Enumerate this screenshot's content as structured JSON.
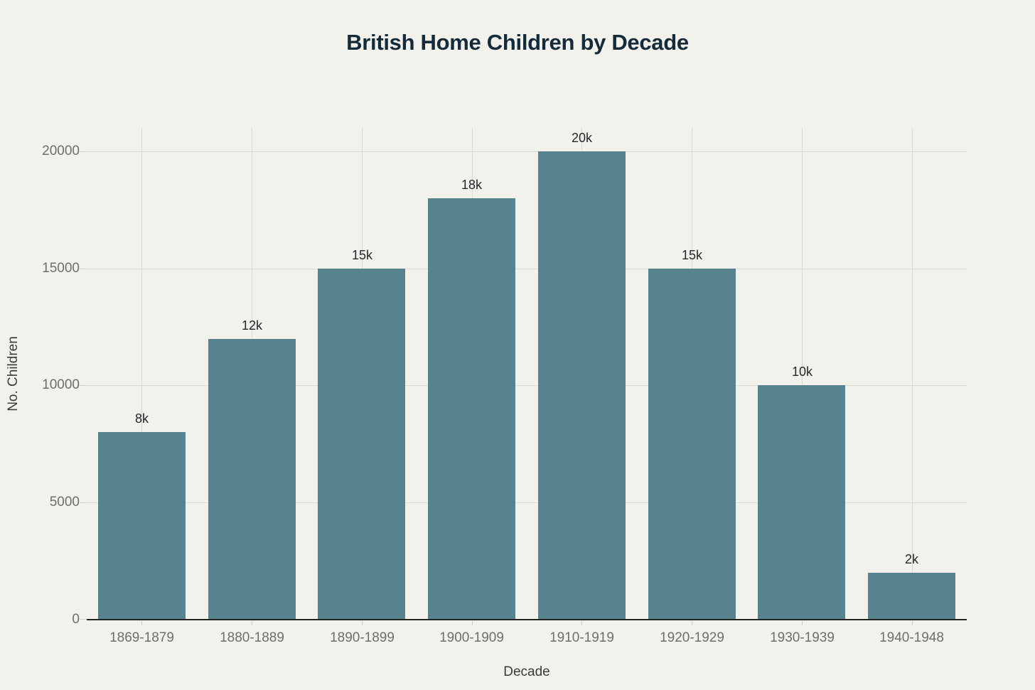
{
  "chart_data": {
    "type": "bar",
    "title": "British Home Children by Decade",
    "xlabel": "Decade",
    "ylabel": "No. Children",
    "categories": [
      "1869-1879",
      "1880-1889",
      "1890-1899",
      "1900-1909",
      "1910-1919",
      "1920-1929",
      "1930-1939",
      "1940-1948"
    ],
    "values": [
      8000,
      12000,
      15000,
      18000,
      20000,
      15000,
      10000,
      2000
    ],
    "bar_labels": [
      "8k",
      "12k",
      "15k",
      "18k",
      "20k",
      "15k",
      "10k",
      "2k"
    ],
    "yticks": [
      0,
      5000,
      10000,
      15000,
      20000
    ],
    "ytick_labels": [
      "0",
      "5000",
      "10000",
      "15000",
      "20000"
    ],
    "ylim": [
      0,
      21000
    ],
    "grid": "both",
    "legend": "none",
    "colors": {
      "background": "#F2F1EC",
      "bar": "#57838E",
      "grid": "#DBD9D2",
      "axis_line": "#23231F",
      "title": "#132B3A",
      "tick_label": "#6E6E6A",
      "axis_title": "#3B3B38",
      "bar_label": "#26262B"
    }
  }
}
